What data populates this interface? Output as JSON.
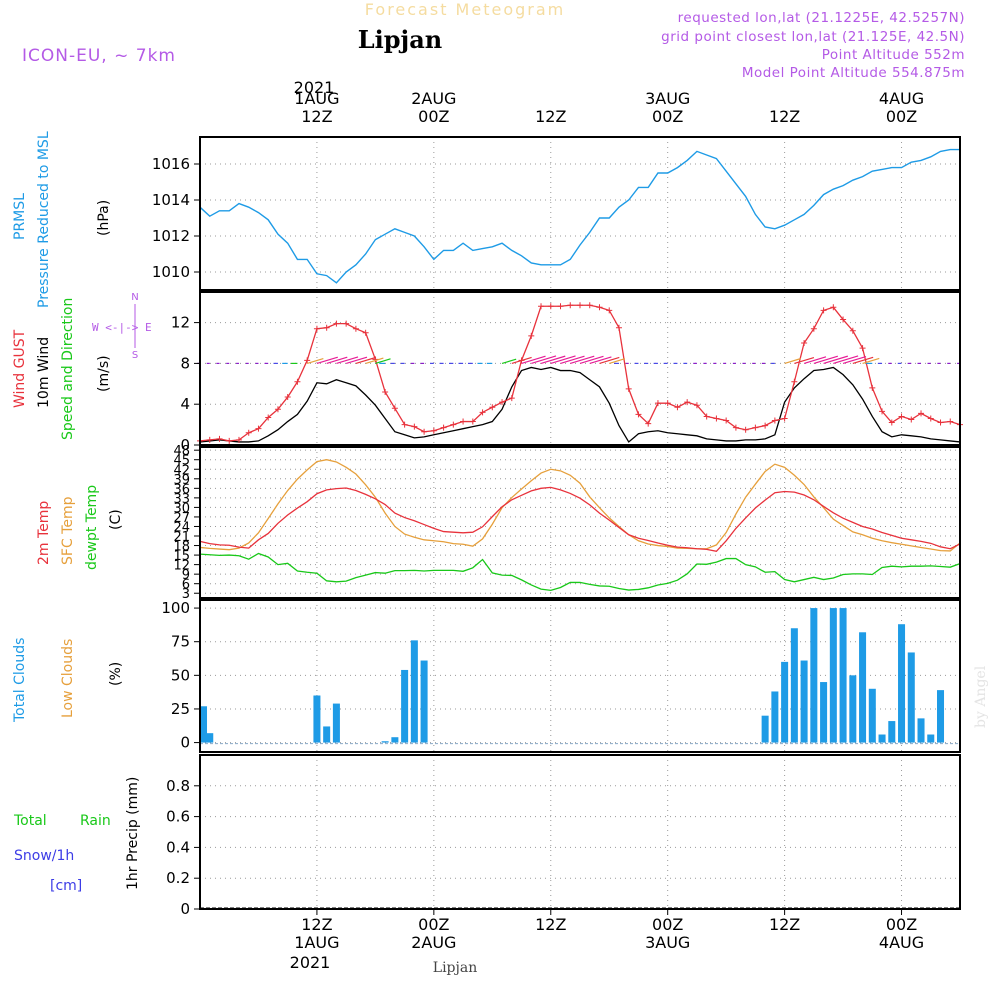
{
  "header": {
    "super_title": "Forecast Meteogram",
    "location": "Lipjan",
    "model": "ICON-EU, ~ 7km",
    "requested": "requested lon,lat (21.1225E, 42.5257N)",
    "grid_point": "grid point closest lon,lat (21.125E, 42.5N)",
    "point_altitude": "Point Altitude 552m",
    "model_altitude": "Model Point Altitude 554.875m",
    "footer_location": "Lipjan",
    "credit": "by Angel"
  },
  "time_axis": {
    "top_year": "2021",
    "bottom_year": "2021",
    "ticks": [
      {
        "t": 12,
        "top": [
          "1AUG",
          "12Z"
        ],
        "bottom": [
          "12Z",
          "1AUG"
        ]
      },
      {
        "t": 24,
        "top": [
          "2AUG",
          "00Z"
        ],
        "bottom": [
          "00Z",
          "2AUG"
        ]
      },
      {
        "t": 36,
        "top": [
          "12Z"
        ],
        "bottom": [
          "12Z"
        ]
      },
      {
        "t": 48,
        "top": [
          "3AUG",
          "00Z"
        ],
        "bottom": [
          "00Z",
          "3AUG"
        ]
      },
      {
        "t": 60,
        "top": [
          "12Z"
        ],
        "bottom": [
          "12Z"
        ]
      },
      {
        "t": 72,
        "top": [
          "4AUG",
          "00Z"
        ],
        "bottom": [
          "00Z",
          "4AUG"
        ]
      }
    ]
  },
  "panels": {
    "pressure": {
      "label1": "PRMSL",
      "label2": "Pressure Reduced to MSL",
      "unit": "(hPa)",
      "ticks": [
        "1010",
        "1012",
        "1014",
        "1016"
      ]
    },
    "wind": {
      "label_gust": "Wind GUST",
      "label_wind": "10m Wind",
      "label_dir": "Speed and Direction",
      "unit": "(m/s)",
      "ticks": [
        "0",
        "4",
        "8",
        "12"
      ],
      "compass_n": "N",
      "compass_s": "S",
      "compass_we": "W <-|-> E"
    },
    "temp": {
      "label_2m": "2m Temp",
      "label_sfc": "SFC Temp",
      "label_dew": "dewpt Temp",
      "unit": "(C)",
      "ticks": [
        "3",
        "6",
        "9",
        "12",
        "15",
        "18",
        "21",
        "24",
        "27",
        "30",
        "33",
        "36",
        "39",
        "42",
        "45",
        "48"
      ]
    },
    "clouds": {
      "label_total": "Total Clouds",
      "label_low": "Low Clouds",
      "unit": "(%)",
      "ticks": [
        "0",
        "25",
        "50",
        "75",
        "100"
      ]
    },
    "precip": {
      "label_total": "Total",
      "label_rain": "Rain",
      "label_snow": "Snow/1h",
      "label_cm": "[cm]",
      "axis_label": "1hr Precip (mm)",
      "ticks": [
        "0",
        "0.2",
        "0.4",
        "0.6",
        "0.8"
      ]
    }
  },
  "colors": {
    "pressure": "#1E9BE6",
    "gust": "#E8323C",
    "wind": "#000000",
    "wind_dir_label": "#19C819",
    "temp2m": "#E8323C",
    "sfc": "#E6A03C",
    "dew": "#19C819",
    "clouds": "#1E9BE6",
    "low_clouds": "#E6A03C",
    "purple": "#B45AE6",
    "rain": "#19C819",
    "snow": "#3C3CE6"
  },
  "chart_data": {
    "type": "line",
    "x_units": "hours since 2021-08-01 00Z",
    "x_range": [
      0,
      78
    ],
    "pressure": {
      "ylim": [
        1009,
        1017.5
      ],
      "x": [
        0,
        1,
        2,
        3,
        4,
        5,
        6,
        7,
        8,
        9,
        10,
        11,
        12,
        13,
        14,
        15,
        16,
        17,
        18,
        19,
        20,
        21,
        22,
        23,
        24,
        25,
        26,
        27,
        28,
        29,
        30,
        31,
        32,
        33,
        34,
        35,
        36,
        37,
        38,
        39,
        40,
        41,
        42,
        43,
        44,
        45,
        46,
        47,
        48,
        49,
        50,
        51,
        52,
        53,
        54,
        55,
        56,
        57,
        58,
        59,
        60,
        61,
        62,
        63,
        64,
        65,
        66,
        67,
        68,
        69,
        70,
        71,
        72,
        73,
        74,
        75,
        76,
        77,
        78
      ],
      "y": [
        1013.6,
        1013.1,
        1013.4,
        1013.4,
        1013.8,
        1013.6,
        1013.3,
        1012.9,
        1012.1,
        1011.6,
        1010.7,
        1010.7,
        1009.9,
        1009.8,
        1009.4,
        1010.0,
        1010.4,
        1011.0,
        1011.8,
        1012.1,
        1012.4,
        1012.2,
        1012.0,
        1011.4,
        1010.7,
        1011.2,
        1011.2,
        1011.6,
        1011.2,
        1011.3,
        1011.4,
        1011.6,
        1011.2,
        1010.9,
        1010.5,
        1010.4,
        1010.4,
        1010.4,
        1010.7,
        1011.5,
        1012.2,
        1013.0,
        1013.0,
        1013.6,
        1014.0,
        1014.7,
        1014.7,
        1015.5,
        1015.5,
        1015.8,
        1016.2,
        1016.7,
        1016.5,
        1016.3,
        1015.6,
        1014.9,
        1014.2,
        1013.2,
        1012.5,
        1012.4,
        1012.6,
        1012.9,
        1013.2,
        1013.7,
        1014.3,
        1014.6,
        1014.8,
        1015.1,
        1015.3,
        1015.6,
        1015.7,
        1015.8,
        1015.8,
        1016.1,
        1016.2,
        1016.4,
        1016.7,
        1016.8,
        1016.8
      ]
    },
    "wind_gust": {
      "ylim": [
        0,
        15
      ],
      "y": [
        0.4,
        0.5,
        0.6,
        0.4,
        0.5,
        1.2,
        1.6,
        2.7,
        3.5,
        4.7,
        6.2,
        8.3,
        11.4,
        11.5,
        11.9,
        11.9,
        11.4,
        11.0,
        8.4,
        5.2,
        3.6,
        2.0,
        1.8,
        1.3,
        1.4,
        1.7,
        2.0,
        2.3,
        2.3,
        3.2,
        3.7,
        4.2,
        4.6,
        8.3,
        10.7,
        13.6,
        13.6,
        13.6,
        13.7,
        13.7,
        13.7,
        13.5,
        13.2,
        11.5,
        5.5,
        3.0,
        2.1,
        4.1,
        4.1,
        3.7,
        4.2,
        3.9,
        2.8,
        2.6,
        2.4,
        1.7,
        1.5,
        1.7,
        1.9,
        2.4,
        2.6,
        6.2,
        10.0,
        11.4,
        13.2,
        13.5,
        12.3,
        11.2,
        9.5,
        5.6,
        3.3,
        2.2,
        2.8,
        2.5,
        3.1,
        2.6,
        2.2,
        2.3,
        2.0
      ]
    },
    "wind_speed": {
      "ylim": [
        0,
        15
      ],
      "y": [
        0.3,
        0.4,
        0.5,
        0.4,
        0.3,
        0.3,
        0.4,
        0.9,
        1.5,
        2.3,
        3.0,
        4.3,
        6.1,
        6.0,
        6.4,
        6.1,
        5.8,
        4.9,
        3.9,
        2.6,
        1.3,
        1.0,
        0.7,
        0.8,
        1.0,
        1.2,
        1.4,
        1.6,
        1.8,
        2.0,
        2.3,
        3.5,
        5.7,
        7.3,
        7.6,
        7.4,
        7.6,
        7.3,
        7.3,
        7.1,
        6.4,
        5.7,
        4.1,
        1.9,
        0.3,
        1.1,
        1.3,
        1.4,
        1.2,
        1.1,
        1.0,
        0.9,
        0.6,
        0.5,
        0.4,
        0.4,
        0.5,
        0.5,
        0.6,
        1.0,
        4.2,
        5.6,
        6.5,
        7.3,
        7.4,
        7.6,
        6.9,
        5.9,
        4.5,
        2.8,
        1.3,
        0.8,
        1.0,
        0.9,
        0.8,
        0.6,
        0.5,
        0.4,
        0.3
      ]
    },
    "temp_2m": {
      "ylim": [
        1.5,
        49
      ],
      "y": [
        19.3,
        18.6,
        18.2,
        18.1,
        17.5,
        17.2,
        19.8,
        21.8,
        25.0,
        27.6,
        29.8,
        31.8,
        34.3,
        35.5,
        35.9,
        36.1,
        35.3,
        34.1,
        32.7,
        30.9,
        28.2,
        26.8,
        25.8,
        24.6,
        23.4,
        22.4,
        22.2,
        22.0,
        22.2,
        23.9,
        27.1,
        30.2,
        32.4,
        33.8,
        35.2,
        36.0,
        36.3,
        35.5,
        34.4,
        32.9,
        30.8,
        28.2,
        26.0,
        23.7,
        21.4,
        20.3,
        19.6,
        18.8,
        18.1,
        17.5,
        17.3,
        17.0,
        16.8,
        16.2,
        19.5,
        23.4,
        26.7,
        29.8,
        32.3,
        34.6,
        35.0,
        34.8,
        33.9,
        32.4,
        30.3,
        28.3,
        26.6,
        25.3,
        24.0,
        23.2,
        22.1,
        21.2,
        20.3,
        19.8,
        19.3,
        18.7,
        17.6,
        17.0,
        18.5
      ]
    },
    "temp_sfc": {
      "ylim": [
        1.5,
        49
      ],
      "y": [
        17.4,
        17.1,
        16.9,
        16.7,
        17.2,
        18.8,
        22.0,
        26.5,
        31.1,
        35.3,
        38.9,
        41.8,
        44.4,
        45.0,
        44.3,
        42.6,
        40.5,
        37.1,
        33.2,
        28.2,
        24.0,
        21.6,
        20.6,
        19.8,
        19.5,
        19.2,
        18.6,
        18.4,
        17.8,
        20.1,
        24.7,
        29.9,
        33.1,
        35.8,
        38.4,
        40.8,
        42.0,
        41.5,
        40.1,
        37.6,
        33.3,
        29.9,
        26.7,
        24.0,
        21.4,
        19.5,
        18.5,
        18.0,
        17.7,
        17.2,
        17.1,
        17.0,
        17.0,
        18.2,
        22.1,
        27.9,
        33.2,
        37.3,
        41.3,
        43.6,
        42.6,
        40.1,
        37.2,
        33.3,
        29.9,
        26.3,
        24.3,
        22.3,
        21.4,
        20.3,
        19.5,
        18.9,
        18.4,
        17.9,
        17.4,
        16.9,
        16.4,
        16.3,
        18.8
      ]
    },
    "dewpt": {
      "ylim": [
        1.5,
        49
      ],
      "y": [
        15.3,
        15.1,
        14.9,
        15.0,
        14.8,
        13.7,
        15.5,
        14.4,
        12.0,
        12.4,
        10.0,
        9.6,
        9.3,
        6.9,
        6.6,
        6.8,
        7.9,
        8.7,
        9.5,
        9.3,
        10.1,
        10.1,
        10.2,
        10.0,
        10.2,
        10.2,
        10.2,
        9.9,
        11.0,
        13.6,
        9.4,
        8.7,
        8.6,
        7.2,
        5.6,
        4.3,
        3.9,
        4.8,
        6.4,
        6.4,
        5.8,
        5.3,
        5.2,
        4.5,
        4.0,
        4.2,
        4.7,
        5.6,
        6.1,
        7.1,
        9.1,
        12.2,
        12.1,
        12.8,
        13.9,
        13.9,
        12.0,
        11.3,
        9.6,
        9.8,
        7.3,
        6.6,
        7.3,
        8.0,
        7.3,
        7.8,
        8.9,
        9.1,
        9.1,
        8.9,
        11.1,
        11.5,
        11.3,
        11.5,
        11.5,
        11.6,
        11.4,
        11.2,
        12.3
      ]
    },
    "total_clouds": {
      "ylim": [
        -7,
        106
      ],
      "y": [
        27,
        7,
        0,
        0,
        0,
        0,
        0,
        0,
        0,
        0,
        0,
        0,
        35,
        12,
        29,
        0,
        0,
        0,
        0,
        1,
        4,
        54,
        76,
        61,
        0,
        0,
        0,
        0,
        0,
        0,
        0,
        0,
        0,
        0,
        0,
        0,
        0,
        0,
        0,
        0,
        0,
        0,
        0,
        0,
        0,
        0,
        0,
        0,
        0,
        0,
        0,
        0,
        0,
        0,
        0,
        0,
        0,
        0,
        20,
        38,
        60,
        85,
        61,
        100,
        45,
        100,
        100,
        50,
        82,
        40,
        6,
        16,
        88,
        67,
        18,
        6,
        39,
        0,
        0
      ]
    },
    "precip": {
      "ylim": [
        0,
        1
      ],
      "values": []
    }
  }
}
